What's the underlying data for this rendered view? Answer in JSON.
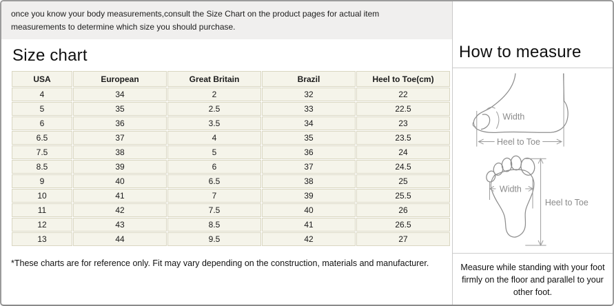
{
  "intro": {
    "text": "once you know your body measurements,consult the Size Chart on the product pages for actual item measurements to determine which size you should purchase."
  },
  "size_chart": {
    "title": "Size chart",
    "columns": [
      "USA",
      "European",
      "Great Britain",
      "Brazil",
      "Heel to Toe(cm)"
    ],
    "rows": [
      [
        "4",
        "34",
        "2",
        "32",
        "22"
      ],
      [
        "5",
        "35",
        "2.5",
        "33",
        "22.5"
      ],
      [
        "6",
        "36",
        "3.5",
        "34",
        "23"
      ],
      [
        "6.5",
        "37",
        "4",
        "35",
        "23.5"
      ],
      [
        "7.5",
        "38",
        "5",
        "36",
        "24"
      ],
      [
        "8.5",
        "39",
        "6",
        "37",
        "24.5"
      ],
      [
        "9",
        "40",
        "6.5",
        "38",
        "25"
      ],
      [
        "10",
        "41",
        "7",
        "39",
        "25.5"
      ],
      [
        "11",
        "42",
        "7.5",
        "40",
        "26"
      ],
      [
        "12",
        "43",
        "8.5",
        "41",
        "26.5"
      ],
      [
        "13",
        "44",
        "9.5",
        "42",
        "27"
      ]
    ],
    "footnote": "*These charts are for reference only. Fit may vary depending on the construction, materials and manufacturer."
  },
  "how_to_measure": {
    "title": "How to measure",
    "side_diagram": {
      "width_label": "Width",
      "length_label": "Heel to Toe"
    },
    "sole_diagram": {
      "width_label": "Width",
      "length_label": "Heel to Toe"
    },
    "note": "Measure while standing with your foot firmly on the floor and parallel to your other foot."
  },
  "colors": {
    "cell_bg": "#f5f4ea",
    "cell_border": "#d9d6c1",
    "intro_bg": "#f0efee",
    "frame_border": "#9b9b9b",
    "divider": "#cccccc",
    "diagram_stroke": "#8d8d8d"
  }
}
